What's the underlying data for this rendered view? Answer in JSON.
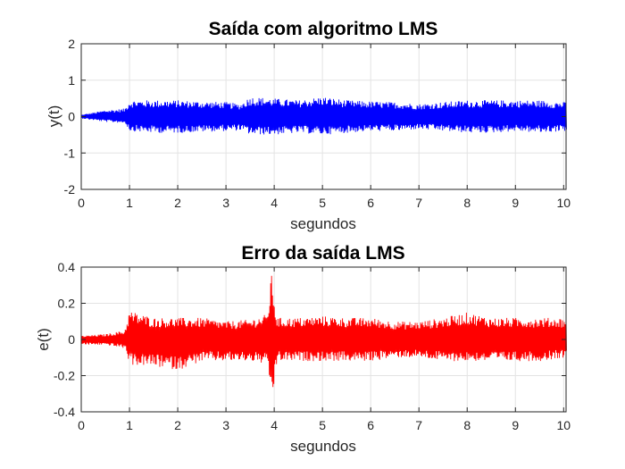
{
  "chart_data": [
    {
      "type": "line",
      "title": "Saída com algoritmo LMS",
      "xlabel": "segundos",
      "ylabel": "y(t)",
      "xlim": [
        0,
        10.05
      ],
      "ylim": [
        -2,
        2
      ],
      "xticks": [
        0,
        1,
        2,
        3,
        4,
        5,
        6,
        7,
        8,
        9,
        10
      ],
      "yticks": [
        -2,
        -1,
        0,
        1,
        2
      ],
      "grid": true,
      "series": [
        {
          "color": "#0000ff",
          "x": [
            0,
            0.5,
            0.9,
            1.0,
            1.5,
            2.0,
            2.5,
            3.0,
            3.3,
            3.5,
            4.0,
            4.5,
            5.0,
            5.5,
            6.0,
            6.5,
            7.0,
            7.5,
            8.0,
            8.5,
            9.0,
            9.5,
            10.0
          ],
          "upper": [
            0.05,
            0.18,
            0.22,
            0.45,
            0.45,
            0.45,
            0.42,
            0.4,
            0.35,
            0.55,
            0.5,
            0.45,
            0.55,
            0.45,
            0.42,
            0.4,
            0.35,
            0.4,
            0.45,
            0.45,
            0.45,
            0.45,
            0.4
          ],
          "lower": [
            -0.05,
            -0.15,
            -0.18,
            -0.4,
            -0.45,
            -0.45,
            -0.42,
            -0.4,
            -0.38,
            -0.5,
            -0.5,
            -0.45,
            -0.5,
            -0.45,
            -0.4,
            -0.4,
            -0.35,
            -0.4,
            -0.45,
            -0.45,
            -0.4,
            -0.45,
            -0.4
          ]
        }
      ]
    },
    {
      "type": "line",
      "title": "Erro da saída LMS",
      "xlabel": "segundos",
      "ylabel": "e(t)",
      "xlim": [
        0,
        10.05
      ],
      "ylim": [
        -0.4,
        0.4
      ],
      "xticks": [
        0,
        1,
        2,
        3,
        4,
        5,
        6,
        7,
        8,
        9,
        10
      ],
      "yticks": [
        -0.4,
        -0.2,
        0,
        0.2,
        0.4
      ],
      "grid": true,
      "series": [
        {
          "color": "#ff0000",
          "x": [
            0,
            0.5,
            0.9,
            1.0,
            1.5,
            2.0,
            2.5,
            3.0,
            3.5,
            3.85,
            3.95,
            4.05,
            4.5,
            5.0,
            5.5,
            6.0,
            6.5,
            7.0,
            7.5,
            8.0,
            8.5,
            9.0,
            9.5,
            10.0
          ],
          "upper": [
            0.02,
            0.03,
            0.05,
            0.16,
            0.12,
            0.12,
            0.12,
            0.1,
            0.11,
            0.14,
            0.37,
            0.12,
            0.12,
            0.13,
            0.12,
            0.12,
            0.1,
            0.1,
            0.12,
            0.15,
            0.12,
            0.12,
            0.12,
            0.12
          ],
          "lower": [
            -0.03,
            -0.03,
            -0.05,
            -0.14,
            -0.15,
            -0.17,
            -0.12,
            -0.12,
            -0.12,
            -0.14,
            -0.34,
            -0.12,
            -0.12,
            -0.12,
            -0.12,
            -0.12,
            -0.1,
            -0.1,
            -0.12,
            -0.12,
            -0.12,
            -0.12,
            -0.12,
            -0.1
          ]
        }
      ]
    }
  ]
}
